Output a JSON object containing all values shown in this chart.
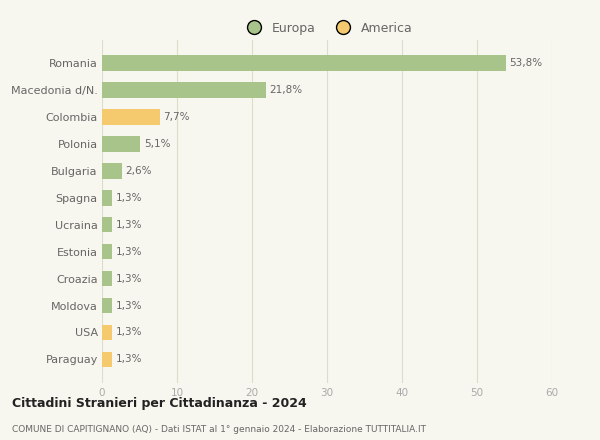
{
  "countries": [
    "Romania",
    "Macedonia d/N.",
    "Colombia",
    "Polonia",
    "Bulgaria",
    "Spagna",
    "Ucraina",
    "Estonia",
    "Croazia",
    "Moldova",
    "USA",
    "Paraguay"
  ],
  "values": [
    53.8,
    21.8,
    7.7,
    5.1,
    2.6,
    1.3,
    1.3,
    1.3,
    1.3,
    1.3,
    1.3,
    1.3
  ],
  "labels": [
    "53,8%",
    "21,8%",
    "7,7%",
    "5,1%",
    "2,6%",
    "1,3%",
    "1,3%",
    "1,3%",
    "1,3%",
    "1,3%",
    "1,3%",
    "1,3%"
  ],
  "continent": [
    "Europa",
    "Europa",
    "America",
    "Europa",
    "Europa",
    "Europa",
    "Europa",
    "Europa",
    "Europa",
    "Europa",
    "America",
    "America"
  ],
  "color_europa": "#a8c48a",
  "color_america": "#f5c96e",
  "background_color": "#f7f7ef",
  "grid_color": "#ddddcc",
  "title_line1": "Cittadini Stranieri per Cittadinanza - 2024",
  "title_line2": "COMUNE DI CAPITIGNANO (AQ) - Dati ISTAT al 1° gennaio 2024 - Elaborazione TUTTITALIA.IT",
  "legend_europa": "Europa",
  "legend_america": "America",
  "xlim": [
    0,
    60
  ],
  "xticks": [
    0,
    10,
    20,
    30,
    40,
    50,
    60
  ]
}
